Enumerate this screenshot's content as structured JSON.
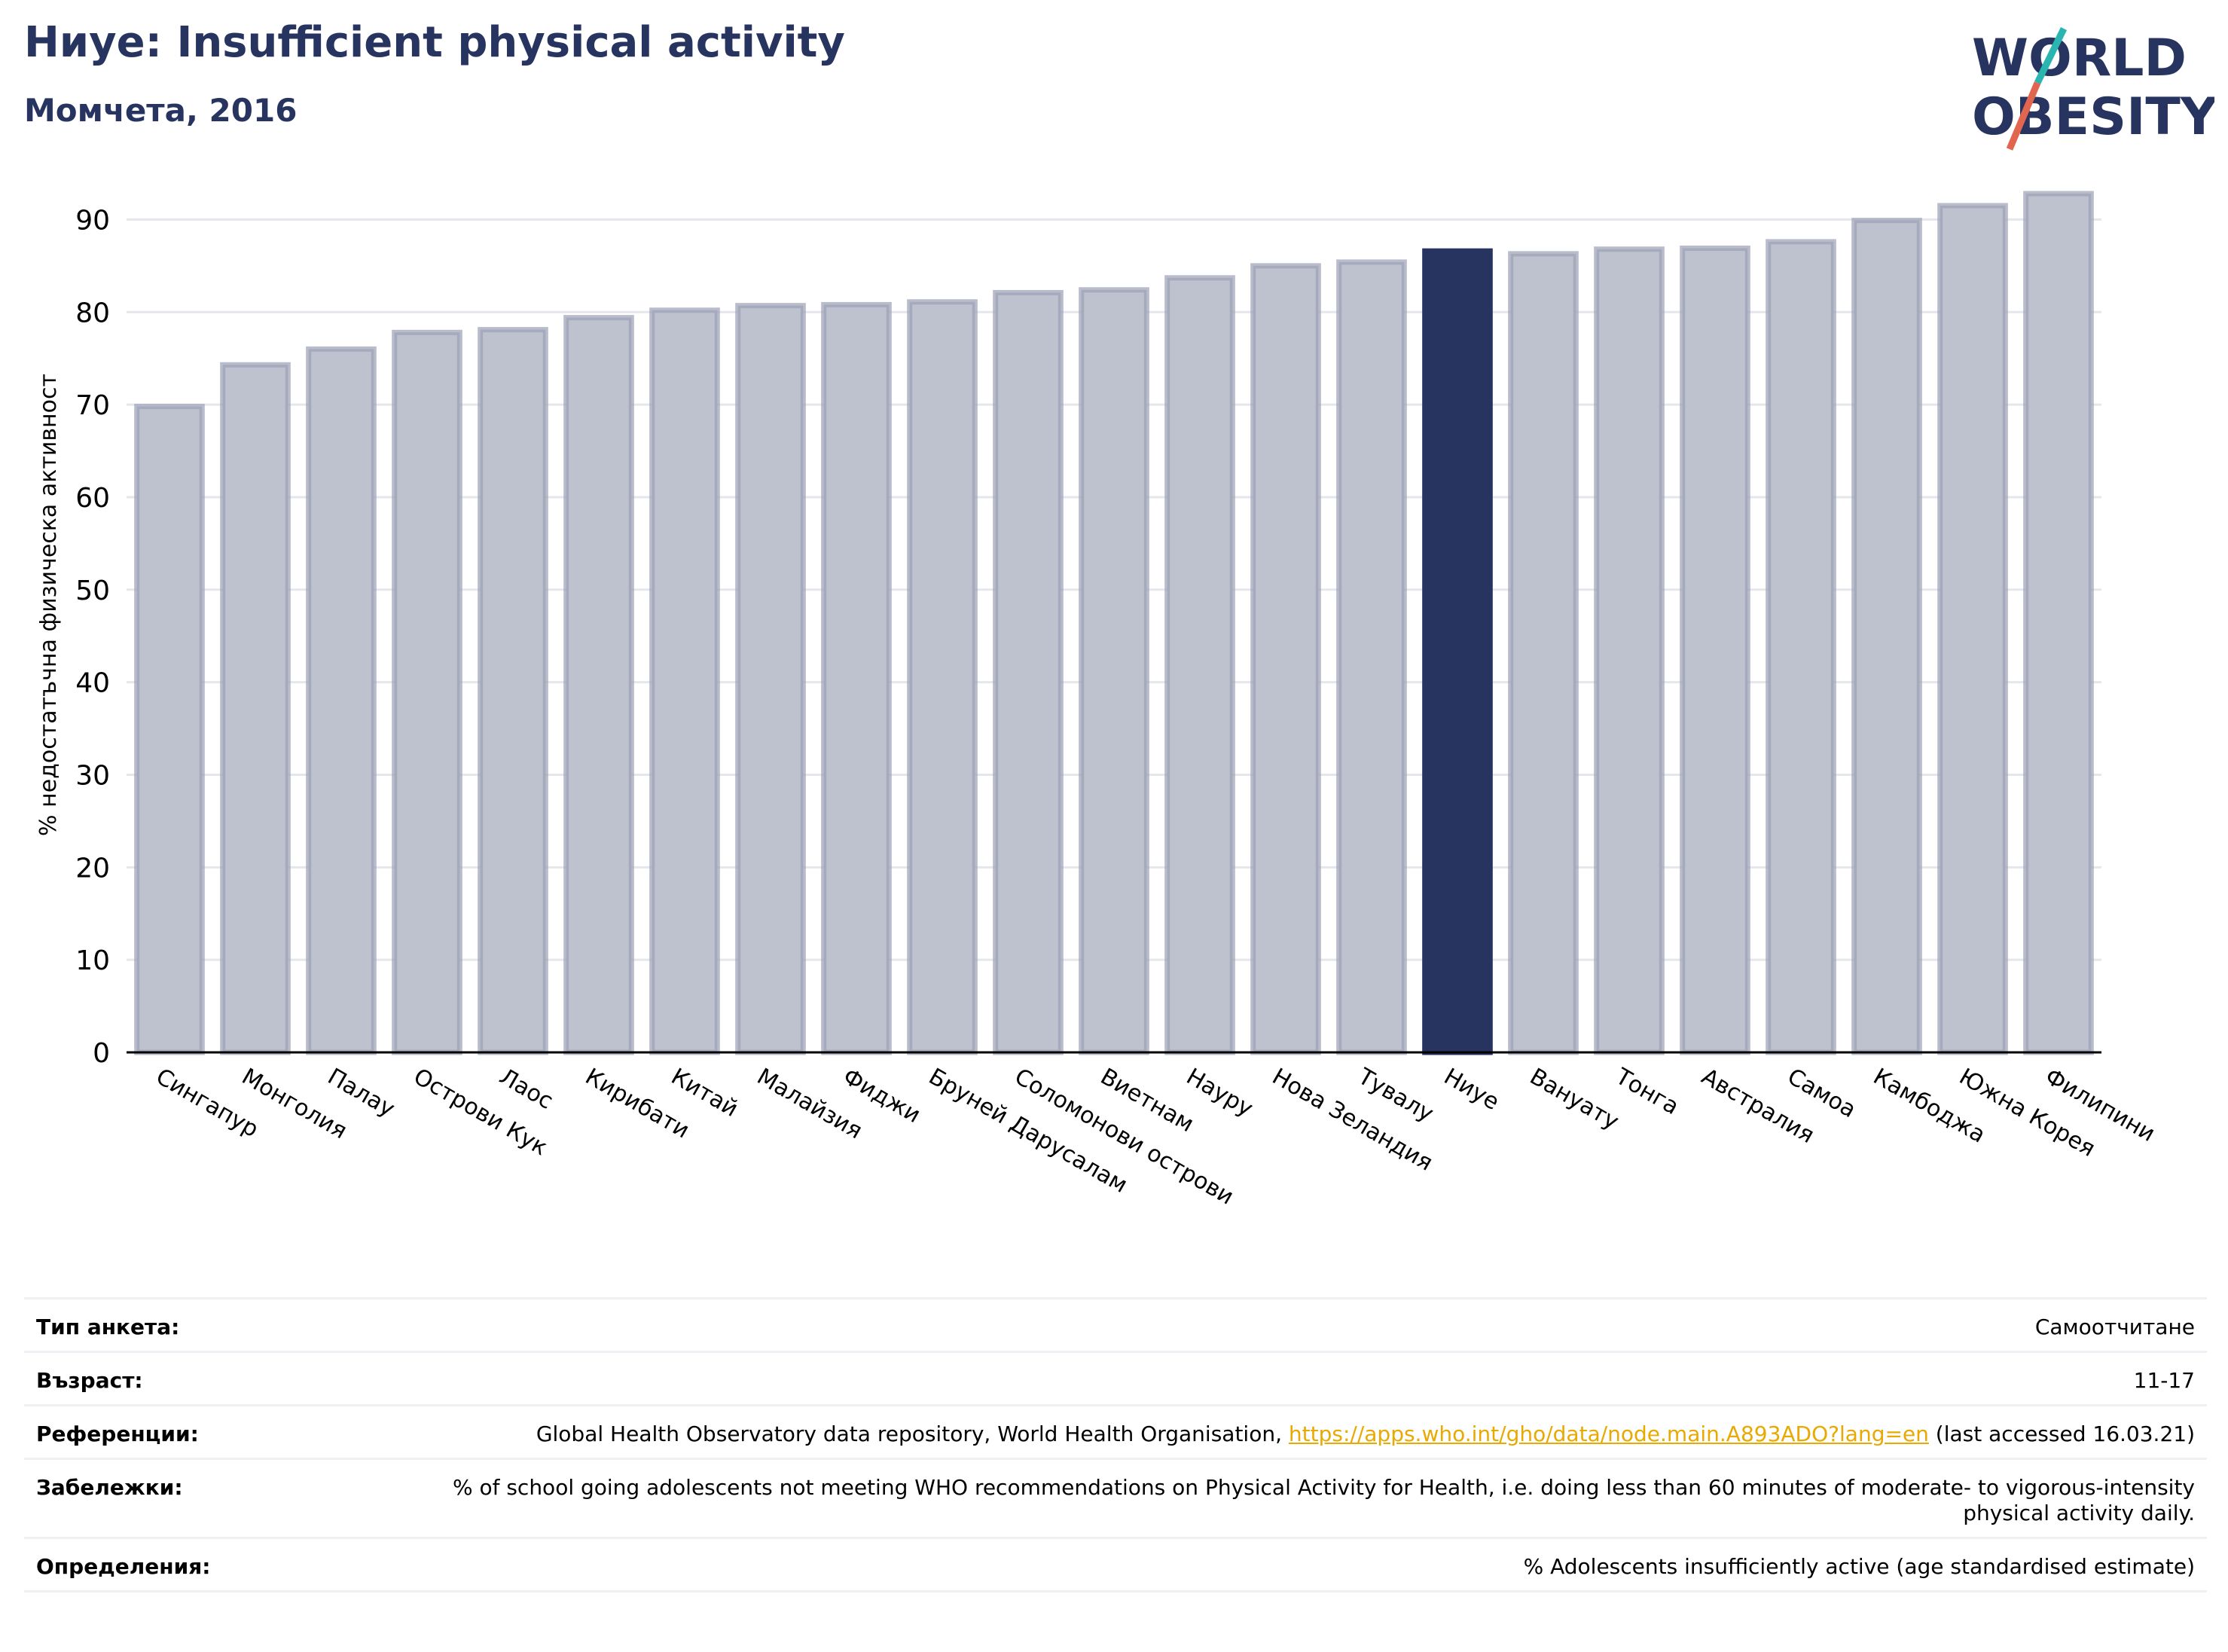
{
  "header": {
    "title": "Ниуе: Insufficient physical activity",
    "subtitle": "Момчета, 2016"
  },
  "logo": {
    "line1": "WORLD",
    "line2": "OBESITY"
  },
  "chart_data": {
    "type": "bar",
    "ylabel": "% недостатъчна физическа активност",
    "ylim": [
      0,
      95
    ],
    "yticks": [
      0,
      10,
      20,
      30,
      40,
      50,
      60,
      70,
      80,
      90
    ],
    "grid": true,
    "highlight": "Ниуе",
    "colors": {
      "bar": "#bec1ce",
      "bar_edge": "#9a9fb5",
      "highlight": "#283460",
      "grid": "#e6e7ec",
      "axis": "#000000"
    },
    "categories": [
      "Сингапур",
      "Монголия",
      "Палау",
      "Острови Кук",
      "Лаос",
      "Кирибати",
      "Китай",
      "Малайзия",
      "Фиджи",
      "Бруней Дарусалам",
      "Соломонови острови",
      "Виетнам",
      "Науру",
      "Нова Зеландия",
      "Тувалу",
      "Ниуе",
      "Вануату",
      "Тонга",
      "Австралия",
      "Самоа",
      "Камбоджа",
      "Южна Корея",
      "Филипини"
    ],
    "values": [
      69.8,
      74.3,
      76.0,
      77.8,
      78.1,
      79.4,
      80.2,
      80.7,
      80.8,
      81.1,
      82.1,
      82.4,
      83.7,
      85.0,
      85.4,
      86.6,
      86.3,
      86.8,
      86.9,
      87.6,
      89.9,
      91.5,
      92.8
    ]
  },
  "meta": {
    "rows": [
      {
        "label": "Тип анкета:",
        "value": "Самоотчитане"
      },
      {
        "label": "Възраст:",
        "value": "11-17"
      },
      {
        "label": "Референции:",
        "value_pre": "Global Health Observatory data repository, World Health Organisation, ",
        "link": "https://apps.who.int/gho/data/node.main.A893ADO?lang=en",
        "value_post": " (last accessed 16.03.21)"
      },
      {
        "label": "Забележки:",
        "value": "% of school going adolescents not meeting WHO recommendations on Physical Activity for Health, i.e. doing less than 60 minutes of moderate- to vigorous-intensity physical activity daily."
      },
      {
        "label": "Определения:",
        "value": "% Adolescents insufficiently active (age standardised estimate)"
      }
    ]
  }
}
